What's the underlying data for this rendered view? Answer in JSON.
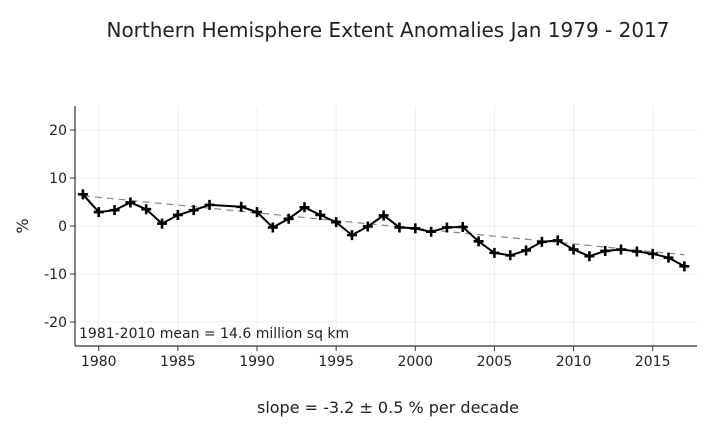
{
  "chart_data": {
    "type": "line",
    "title": "Northern Hemisphere Extent Anomalies Jan 1979 - 2017",
    "xlabel": "",
    "ylabel": "%",
    "xlim": [
      1978.5,
      2017.8
    ],
    "ylim": [
      -25,
      25
    ],
    "x_ticks": [
      1980,
      1985,
      1990,
      1995,
      2000,
      2005,
      2010,
      2015
    ],
    "y_ticks": [
      20,
      10,
      0,
      -10,
      -20
    ],
    "grid": true,
    "annotation": "1981-2010 mean = 14.6 million sq km",
    "slope_text": "slope = -3.2 ± 0.5 % per decade",
    "series": [
      {
        "x": [
          1979,
          1980,
          1981,
          1982,
          1983,
          1984,
          1985,
          1986,
          1987,
          1989,
          1990,
          1991,
          1992,
          1993,
          1994,
          1995,
          1996,
          1997,
          1998,
          1999,
          2000,
          2001,
          2002,
          2003,
          2004,
          2005,
          2006,
          2007,
          2008,
          2009,
          2010,
          2011,
          2012,
          2013,
          2014,
          2015,
          2016,
          2017
        ],
        "y": [
          6.6,
          2.9,
          3.3,
          4.9,
          3.5,
          0.5,
          2.3,
          3.3,
          4.4,
          4.0,
          2.9,
          -0.3,
          1.5,
          3.9,
          2.3,
          0.8,
          -1.9,
          -0.1,
          2.2,
          -0.3,
          -0.5,
          -1.2,
          -0.3,
          -0.2,
          -3.2,
          -5.6,
          -6.1,
          -5.1,
          -3.3,
          -3.0,
          -4.9,
          -6.3,
          -5.2,
          -4.9,
          -5.3,
          -5.8,
          -6.6,
          -8.4
        ]
      }
    ],
    "trend": {
      "x": [
        1979,
        2017
      ],
      "y": [
        6.3,
        -6.0
      ]
    }
  }
}
